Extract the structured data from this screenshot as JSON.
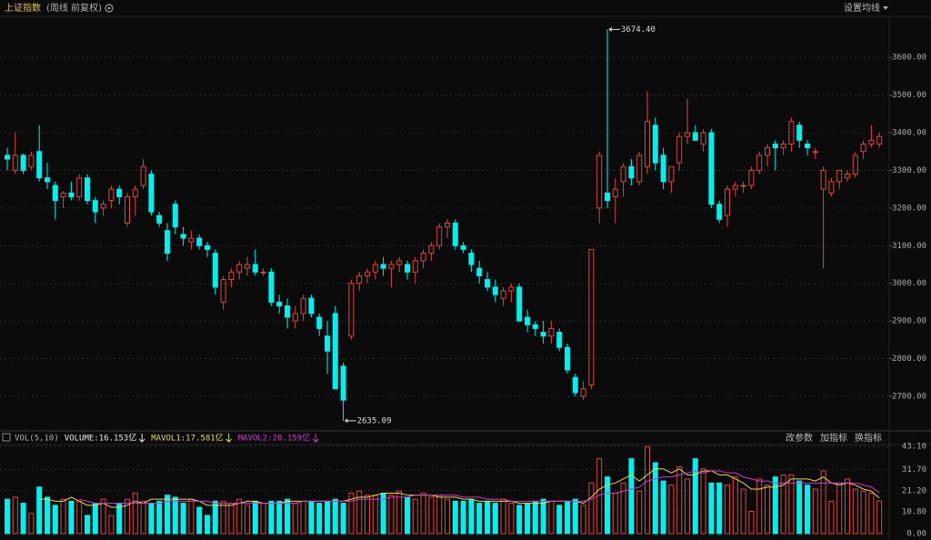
{
  "chart_data": {
    "type": "candlestick",
    "title": "上证指数",
    "subtitle": "(周线 前复权)",
    "menu": "设置均线",
    "up_color": "#e0453a",
    "down_color": "#00f0f0",
    "ylim": [
      2613,
      3709
    ],
    "yticks": [
      {
        "value": 2700,
        "label": "2700.00"
      },
      {
        "value": 2800,
        "label": "2800.00"
      },
      {
        "value": 2900,
        "label": "2900.00"
      },
      {
        "value": 3000,
        "label": "3000.00"
      },
      {
        "value": 3100,
        "label": "3100.00"
      },
      {
        "value": 3200,
        "label": "3200.00"
      },
      {
        "value": 3300,
        "label": "3300.00"
      },
      {
        "value": 3400,
        "label": "3400.00"
      },
      {
        "value": 3500,
        "label": "3500.00"
      },
      {
        "value": 3600,
        "label": "3600.00"
      }
    ],
    "grid": true,
    "annotations": [
      {
        "value": 3674.4,
        "label": "3674.40"
      },
      {
        "value": 2635.09,
        "label": "2635.09"
      }
    ],
    "ohlc": [
      [
        3340,
        3360,
        3300,
        3330
      ],
      [
        3300,
        3400,
        3290,
        3340
      ],
      [
        3340,
        3345,
        3290,
        3300
      ],
      [
        3310,
        3350,
        3300,
        3340
      ],
      [
        3350,
        3420,
        3270,
        3280
      ],
      [
        3280,
        3320,
        3250,
        3270
      ],
      [
        3260,
        3270,
        3170,
        3220
      ],
      [
        3230,
        3245,
        3200,
        3240
      ],
      [
        3240,
        3270,
        3220,
        3230
      ],
      [
        3230,
        3290,
        3220,
        3280
      ],
      [
        3280,
        3290,
        3210,
        3220
      ],
      [
        3220,
        3230,
        3160,
        3190
      ],
      [
        3200,
        3220,
        3180,
        3210
      ],
      [
        3220,
        3260,
        3200,
        3250
      ],
      [
        3250,
        3260,
        3210,
        3230
      ],
      [
        3160,
        3240,
        3150,
        3230
      ],
      [
        3230,
        3260,
        3180,
        3250
      ],
      [
        3260,
        3330,
        3250,
        3310
      ],
      [
        3290,
        3300,
        3180,
        3190
      ],
      [
        3180,
        3190,
        3150,
        3160
      ],
      [
        3140,
        3160,
        3060,
        3080
      ],
      [
        3210,
        3220,
        3130,
        3150
      ],
      [
        3130,
        3150,
        3100,
        3120
      ],
      [
        3110,
        3140,
        3090,
        3120
      ],
      [
        3120,
        3130,
        3090,
        3100
      ],
      [
        3100,
        3110,
        3070,
        3090
      ],
      [
        3080,
        3090,
        2970,
        2990
      ],
      [
        2950,
        3020,
        2930,
        3010
      ],
      [
        3010,
        3040,
        2990,
        3030
      ],
      [
        3030,
        3060,
        3010,
        3050
      ],
      [
        3040,
        3070,
        3020,
        3050
      ],
      [
        3050,
        3090,
        3020,
        3030
      ],
      [
        3030,
        3040,
        3020,
        3030
      ],
      [
        3030,
        3040,
        2940,
        2950
      ],
      [
        2950,
        2970,
        2920,
        2940
      ],
      [
        2940,
        2960,
        2880,
        2910
      ],
      [
        2900,
        2940,
        2880,
        2920
      ],
      [
        2920,
        2970,
        2900,
        2960
      ],
      [
        2960,
        2970,
        2910,
        2920
      ],
      [
        2910,
        2920,
        2860,
        2880
      ],
      [
        2860,
        2900,
        2760,
        2820
      ],
      [
        2920,
        2940,
        2720,
        2720
      ],
      [
        2780,
        2790,
        2635.09,
        2690
      ],
      [
        2860,
        3010,
        2850,
        3000
      ],
      [
        3000,
        3030,
        2980,
        3020
      ],
      [
        3020,
        3040,
        3000,
        3030
      ],
      [
        3030,
        3060,
        3010,
        3050
      ],
      [
        3050,
        3070,
        3020,
        3040
      ],
      [
        3040,
        3060,
        2990,
        3050
      ],
      [
        3050,
        3070,
        3030,
        3060
      ],
      [
        3050,
        3060,
        3010,
        3030
      ],
      [
        3030,
        3070,
        3000,
        3060
      ],
      [
        3060,
        3090,
        3040,
        3080
      ],
      [
        3080,
        3110,
        3060,
        3100
      ],
      [
        3100,
        3160,
        3090,
        3150
      ],
      [
        3150,
        3170,
        3120,
        3160
      ],
      [
        3160,
        3170,
        3090,
        3100
      ],
      [
        3100,
        3110,
        3080,
        3090
      ],
      [
        3080,
        3090,
        3030,
        3050
      ],
      [
        3040,
        3060,
        3000,
        3020
      ],
      [
        3010,
        3030,
        2980,
        2990
      ],
      [
        2990,
        3010,
        2950,
        2970
      ],
      [
        2960,
        2990,
        2940,
        2980
      ],
      [
        2980,
        3000,
        2950,
        2990
      ],
      [
        2990,
        3000,
        2900,
        2900
      ],
      [
        2910,
        2930,
        2870,
        2890
      ],
      [
        2890,
        2900,
        2860,
        2880
      ],
      [
        2870,
        2900,
        2840,
        2860
      ],
      [
        2860,
        2900,
        2840,
        2880
      ],
      [
        2870,
        2880,
        2820,
        2830
      ],
      [
        2830,
        2840,
        2760,
        2770
      ],
      [
        2750,
        2760,
        2700,
        2710
      ],
      [
        2700,
        2740,
        2690,
        2720
      ],
      [
        2730,
        3090,
        2720,
        3090
      ],
      [
        3200,
        3350,
        3160,
        3340
      ],
      [
        3240,
        3674.4,
        3200,
        3220
      ],
      [
        3230,
        3280,
        3160,
        3250
      ],
      [
        3270,
        3320,
        3230,
        3310
      ],
      [
        3310,
        3330,
        3260,
        3280
      ],
      [
        3270,
        3350,
        3260,
        3340
      ],
      [
        3310,
        3510,
        3290,
        3430
      ],
      [
        3420,
        3440,
        3300,
        3320
      ],
      [
        3340,
        3360,
        3250,
        3270
      ],
      [
        3270,
        3310,
        3240,
        3310
      ],
      [
        3320,
        3400,
        3300,
        3390
      ],
      [
        3390,
        3490,
        3370,
        3400
      ],
      [
        3400,
        3420,
        3380,
        3380
      ],
      [
        3370,
        3410,
        3350,
        3400
      ],
      [
        3400,
        3410,
        3200,
        3210
      ],
      [
        3210,
        3220,
        3160,
        3170
      ],
      [
        3180,
        3260,
        3150,
        3250
      ],
      [
        3250,
        3270,
        3230,
        3260
      ],
      [
        3260,
        3270,
        3240,
        3260
      ],
      [
        3260,
        3310,
        3250,
        3300
      ],
      [
        3300,
        3350,
        3290,
        3340
      ],
      [
        3340,
        3370,
        3310,
        3360
      ],
      [
        3370,
        3380,
        3300,
        3360
      ],
      [
        3360,
        3380,
        3340,
        3370
      ],
      [
        3370,
        3440,
        3350,
        3430
      ],
      [
        3420,
        3430,
        3360,
        3380
      ],
      [
        3370,
        3380,
        3340,
        3360
      ],
      [
        3350,
        3360,
        3330,
        3350
      ],
      [
        3250,
        3310,
        3040,
        3300
      ],
      [
        3240,
        3280,
        3230,
        3270
      ],
      [
        3270,
        3300,
        3250,
        3300
      ],
      [
        3280,
        3300,
        3270,
        3290
      ],
      [
        3290,
        3350,
        3280,
        3340
      ],
      [
        3350,
        3380,
        3330,
        3370
      ],
      [
        3370,
        3420,
        3360,
        3380
      ],
      [
        3370,
        3400,
        3360,
        3390
      ]
    ],
    "volume_panel": {
      "indicator": "VOL(5,10)",
      "ylim": [
        0,
        43.1
      ],
      "yticks": [
        {
          "value": 0,
          "label": "0.00"
        },
        {
          "value": 10.8,
          "label": "10.80"
        },
        {
          "value": 21.2,
          "label": "21.20"
        },
        {
          "value": 31.7,
          "label": "31.70"
        },
        {
          "value": 43.1,
          "label": "43.10"
        }
      ],
      "buttons": [
        "改参数",
        "加指标",
        "换指标"
      ],
      "series": [
        {
          "name": "VOLUME:16.153亿",
          "color": "#e8e8e8",
          "values": [
            17,
            18,
            15,
            10,
            23,
            18,
            14,
            17,
            16,
            16,
            9,
            15,
            17,
            9,
            15,
            17,
            20,
            16,
            15,
            16,
            19,
            18,
            15,
            17,
            13,
            9,
            16,
            16,
            15,
            17,
            14,
            16,
            15,
            16,
            16,
            17,
            15,
            16,
            16,
            15,
            16,
            17,
            15,
            20,
            21,
            19,
            19,
            20,
            19,
            21,
            18,
            17,
            20,
            18,
            19,
            17,
            16,
            16,
            17,
            15,
            16,
            15,
            17,
            15,
            14,
            15,
            16,
            17,
            16,
            14,
            16,
            17,
            14,
            25,
            37,
            28,
            20,
            25,
            37,
            21,
            43,
            35,
            26,
            24,
            33,
            27,
            37,
            32,
            25,
            25,
            24,
            28,
            22,
            11,
            27,
            24,
            28,
            29,
            29,
            26,
            24,
            22,
            31,
            16,
            25,
            27,
            22,
            21,
            20,
            16.153
          ]
        },
        {
          "name": "MAVOL1:17.581亿",
          "color": "#e8d84a",
          "values": [
            null,
            null,
            null,
            null,
            17,
            17,
            16,
            16,
            18,
            16,
            14,
            14,
            15,
            13,
            13,
            14,
            16,
            15,
            17,
            17,
            17,
            17,
            17,
            17,
            16,
            14,
            14,
            14,
            14,
            15,
            16,
            16,
            15,
            15,
            15,
            16,
            16,
            16,
            16,
            16,
            16,
            16,
            16,
            17,
            18,
            18,
            19,
            20,
            20,
            20,
            19,
            19,
            19,
            19,
            18,
            18,
            18,
            17,
            17,
            16,
            16,
            16,
            16,
            16,
            15,
            15,
            15,
            15,
            16,
            16,
            16,
            16,
            15,
            18,
            22,
            24,
            25,
            27,
            29,
            26,
            29,
            32,
            32,
            30,
            32,
            29,
            29,
            31,
            31,
            29,
            29,
            27,
            25,
            22,
            22,
            23,
            23,
            24,
            27,
            27,
            27,
            26,
            28,
            25,
            24,
            25,
            24,
            22,
            21,
            17.581
          ]
        },
        {
          "name": "MAVOL2:20.159亿",
          "color": "#d23ad2",
          "values": [
            null,
            null,
            null,
            null,
            null,
            null,
            null,
            null,
            null,
            17,
            16,
            15,
            15,
            15,
            15,
            15,
            15,
            15,
            15,
            15,
            16,
            16,
            16,
            16,
            16,
            16,
            15,
            15,
            15,
            15,
            15,
            15,
            15,
            15,
            15,
            15,
            15,
            16,
            16,
            16,
            16,
            16,
            16,
            16,
            17,
            17,
            17,
            17,
            18,
            18,
            18,
            19,
            19,
            19,
            19,
            19,
            19,
            18,
            18,
            18,
            17,
            17,
            17,
            16,
            16,
            16,
            16,
            16,
            16,
            16,
            16,
            16,
            16,
            17,
            19,
            20,
            20,
            21,
            22,
            23,
            26,
            27,
            28,
            28,
            29,
            30,
            31,
            30,
            31,
            31,
            30,
            30,
            28,
            27,
            26,
            26,
            25,
            25,
            25,
            25,
            25,
            25,
            25,
            25,
            25,
            25,
            25,
            24,
            23,
            20.159
          ]
        }
      ]
    }
  }
}
